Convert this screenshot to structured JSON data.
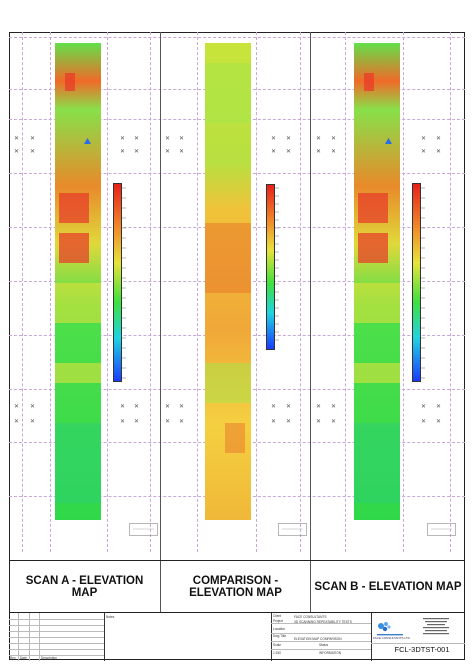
{
  "panels": [
    {
      "title": "SCAN A - ELEVATION MAP"
    },
    {
      "title": "COMPARISON - ELEVATION MAP"
    },
    {
      "title": "SCAN B - ELEVATION MAP"
    }
  ],
  "title_block": {
    "client_label": "Client",
    "client": "FACE CONSULTANTS",
    "project_label": "Project",
    "project": "3D SCANNING REPEATABILITY TESTS",
    "location_label": "Location",
    "drawing_title_label": "Dwg Title",
    "drawing_title": "ELEVATION MAP COMPARISON",
    "scale_label": "Scale",
    "scale": "1:150",
    "status_label": "Status",
    "status": "INFORMATION",
    "drawing_number": "FCL-3DTST-001",
    "revision_headers": [
      "Rev",
      "Date",
      "Description"
    ],
    "notes_label": "Notes",
    "company": "FACE CONSULTANTS LTD"
  },
  "colors": {
    "heat_low": "#1a3cff",
    "heat_mid": "#3ee03e",
    "heat_high": "#ff2a1a",
    "grid": "#c8a8d8"
  }
}
